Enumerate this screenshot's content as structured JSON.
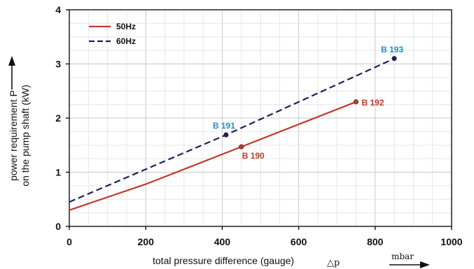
{
  "colors": {
    "s50": "#c0392b",
    "s60": "#1c1f5e",
    "label50": "#c0392b",
    "label60": "#1f8fc8",
    "grid_major": "#c8c8c8",
    "grid_minor": "#e6e6e6",
    "axis": "#111111"
  },
  "chart_data": {
    "type": "line",
    "title": "",
    "xlabel": "total pressure difference (gauge)",
    "xsymbol": "△p",
    "xunit": "mbar",
    "ylabel_line1": "power requirement P",
    "ylabel_line2": "on the pump shaft (kW)",
    "xlim": [
      0,
      1000
    ],
    "ylim": [
      0,
      4
    ],
    "xticks": [
      0,
      200,
      400,
      600,
      800,
      1000
    ],
    "yticks": [
      0,
      1,
      2,
      3,
      4
    ],
    "grid": true,
    "legend_position": "top-left",
    "series": [
      {
        "name": "50Hz",
        "style": "solid",
        "points": [
          [
            0,
            0.3
          ],
          [
            200,
            0.78
          ],
          [
            450,
            1.47
          ],
          [
            750,
            2.3
          ]
        ]
      },
      {
        "name": "60Hz",
        "style": "dashed",
        "points": [
          [
            0,
            0.45
          ],
          [
            410,
            1.69
          ],
          [
            850,
            3.1
          ]
        ]
      }
    ],
    "annotations": [
      {
        "text": "B 190",
        "x": 450,
        "y": 1.47,
        "series": "50Hz"
      },
      {
        "text": "B 192",
        "x": 750,
        "y": 2.3,
        "series": "50Hz"
      },
      {
        "text": "B 191",
        "x": 410,
        "y": 1.69,
        "series": "60Hz"
      },
      {
        "text": "B 193",
        "x": 850,
        "y": 3.1,
        "series": "60Hz"
      }
    ]
  }
}
